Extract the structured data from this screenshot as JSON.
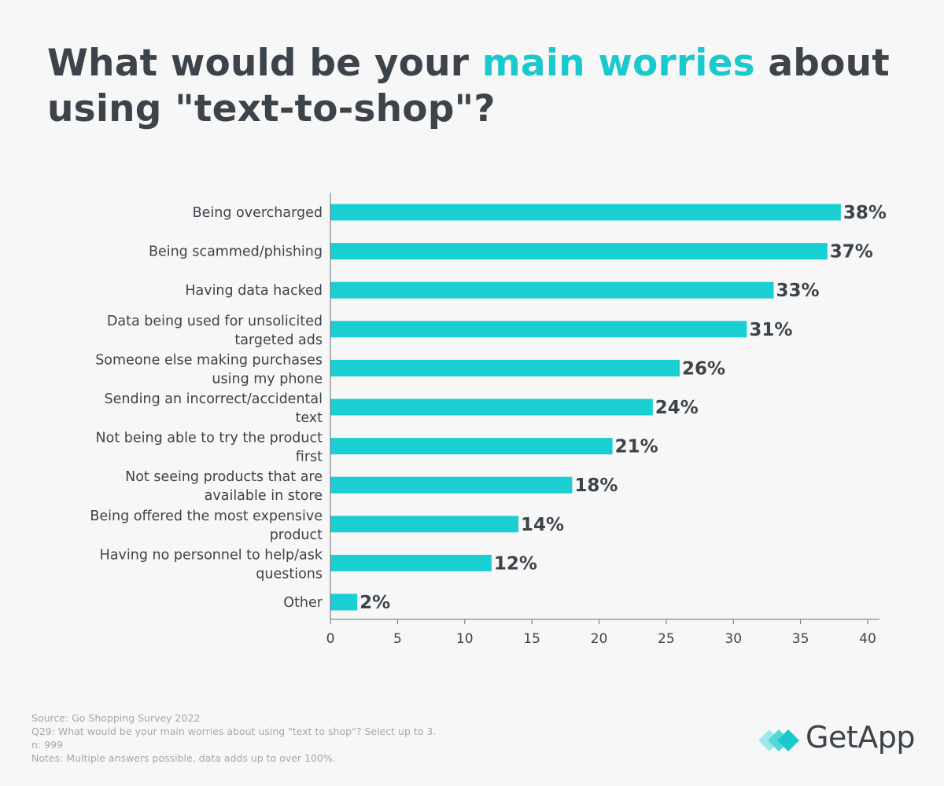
{
  "title": {
    "before": "What would be your ",
    "highlight": "main worries",
    "after": " about using \"text-to-shop\"?"
  },
  "colors": {
    "bar": "#19cfd2",
    "accent": "#19c9cd",
    "text": "#3c434a",
    "axis": "#6b7075",
    "note": "#a3a8ad"
  },
  "chart_data": {
    "type": "bar",
    "orientation": "horizontal",
    "categories": [
      "Being overcharged",
      "Being scammed/phishing",
      "Having data hacked",
      "Data being used for unsolicited targeted ads",
      "Someone else making purchases using my phone",
      "Sending an incorrect/accidental text",
      "Not being able to try the product first",
      "Not seeing products that are available in store",
      "Being offered the most expensive product",
      "Having no personnel to help/ask questions",
      "Other"
    ],
    "category_lines": [
      [
        "Being overcharged"
      ],
      [
        "Being scammed/phishing"
      ],
      [
        "Having data hacked"
      ],
      [
        "Data being used for unsolicited",
        "targeted ads"
      ],
      [
        "Someone else making purchases",
        "using my phone"
      ],
      [
        "Sending an incorrect/accidental",
        "text"
      ],
      [
        "Not being able to try the product",
        "first"
      ],
      [
        "Not seeing products that are",
        "available in store"
      ],
      [
        "Being offered the most expensive",
        "product"
      ],
      [
        "Having no personnel to help/ask",
        "questions"
      ],
      [
        "Other"
      ]
    ],
    "values": [
      38,
      37,
      33,
      31,
      26,
      24,
      21,
      18,
      14,
      12,
      2
    ],
    "value_labels": [
      "38%",
      "37%",
      "33%",
      "31%",
      "26%",
      "24%",
      "21%",
      "18%",
      "14%",
      "12%",
      "2%"
    ],
    "xlim": [
      0,
      40
    ],
    "xticks": [
      0,
      5,
      10,
      15,
      20,
      25,
      30,
      35,
      40
    ],
    "xlabel": "",
    "ylabel": "",
    "grid": false,
    "legend": "none"
  },
  "footnotes": {
    "source": "Source: Go Shopping Survey 2022",
    "question": "Q29: What would be your main worries about using \"text to shop\"? Select up to 3.",
    "n": "n: 999",
    "notes": "Notes: Multiple answers possible, data adds up to over 100%."
  },
  "logo": {
    "icon": "getapp-logo-icon",
    "text": "GetApp"
  }
}
